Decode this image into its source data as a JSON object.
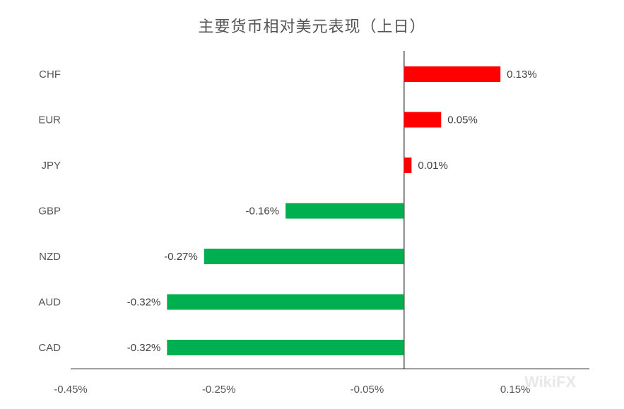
{
  "chart_data": {
    "type": "bar",
    "orientation": "horizontal",
    "title": "主要货币相对美元表现（上日）",
    "categories": [
      "CHF",
      "EUR",
      "JPY",
      "GBP",
      "NZD",
      "AUD",
      "CAD"
    ],
    "values": [
      0.13,
      0.05,
      0.01,
      -0.16,
      -0.27,
      -0.32,
      -0.32
    ],
    "data_labels": [
      "0.13%",
      "0.05%",
      "0.01%",
      "-0.16%",
      "-0.27%",
      "-0.32%",
      "-0.32%"
    ],
    "xlim": [
      -0.45,
      0.25
    ],
    "x_ticks": [
      -0.45,
      -0.25,
      -0.05,
      0.15
    ],
    "x_tick_labels": [
      "-0.45%",
      "-0.25%",
      "-0.05%",
      "0.15%"
    ],
    "colors": {
      "positive": "#ff0000",
      "negative": "#00b050"
    },
    "grid": false,
    "legend": "none"
  },
  "watermark": "WikiFX"
}
